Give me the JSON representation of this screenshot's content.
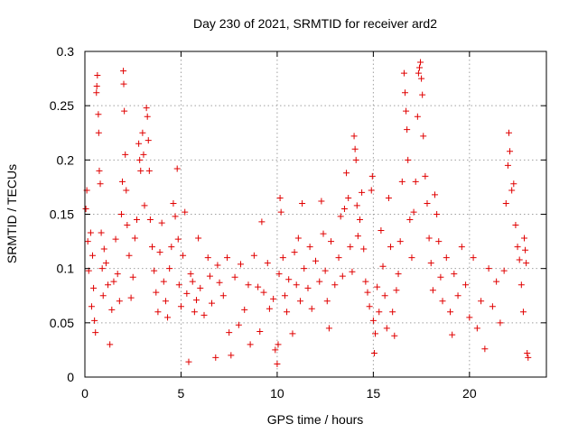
{
  "chart_data": {
    "type": "scatter",
    "title": "Day 230 of 2021, SRMTID for receiver ard2",
    "xlabel": "GPS time / hours",
    "ylabel": "SRMTID / TECUs",
    "xlim": [
      0,
      24
    ],
    "ylim": [
      0,
      0.3
    ],
    "x_ticks": [
      0,
      5,
      10,
      15,
      20
    ],
    "x_tick_labels": [
      "0",
      "5",
      "10",
      "15",
      "20"
    ],
    "y_ticks": [
      0,
      0.05,
      0.1,
      0.15,
      0.2,
      0.25,
      0.3
    ],
    "y_tick_labels": [
      "0",
      "0.05",
      "0.1",
      "0.15",
      "0.2",
      "0.25",
      "0.3"
    ],
    "grid": true,
    "marker": "plus",
    "color": "#e00000",
    "series": [
      {
        "name": "SRMTID",
        "points": [
          [
            0.05,
            0.155
          ],
          [
            0.1,
            0.172
          ],
          [
            0.15,
            0.125
          ],
          [
            0.2,
            0.098
          ],
          [
            0.3,
            0.133
          ],
          [
            0.35,
            0.065
          ],
          [
            0.4,
            0.112
          ],
          [
            0.45,
            0.082
          ],
          [
            0.5,
            0.052
          ],
          [
            0.55,
            0.041
          ],
          [
            0.6,
            0.262
          ],
          [
            0.62,
            0.268
          ],
          [
            0.65,
            0.278
          ],
          [
            0.7,
            0.242
          ],
          [
            0.72,
            0.225
          ],
          [
            0.75,
            0.19
          ],
          [
            0.8,
            0.178
          ],
          [
            0.85,
            0.133
          ],
          [
            0.9,
            0.1
          ],
          [
            0.95,
            0.075
          ],
          [
            1.0,
            0.118
          ],
          [
            1.1,
            0.105
          ],
          [
            1.2,
            0.085
          ],
          [
            1.3,
            0.03
          ],
          [
            1.4,
            0.062
          ],
          [
            1.5,
            0.088
          ],
          [
            1.6,
            0.127
          ],
          [
            1.7,
            0.095
          ],
          [
            1.8,
            0.07
          ],
          [
            1.9,
            0.15
          ],
          [
            1.95,
            0.18
          ],
          [
            2.0,
            0.282
          ],
          [
            2.02,
            0.27
          ],
          [
            2.05,
            0.245
          ],
          [
            2.1,
            0.205
          ],
          [
            2.15,
            0.172
          ],
          [
            2.2,
            0.14
          ],
          [
            2.3,
            0.112
          ],
          [
            2.4,
            0.073
          ],
          [
            2.5,
            0.092
          ],
          [
            2.6,
            0.128
          ],
          [
            2.7,
            0.145
          ],
          [
            2.8,
            0.215
          ],
          [
            2.85,
            0.2
          ],
          [
            2.9,
            0.19
          ],
          [
            3.0,
            0.225
          ],
          [
            3.05,
            0.205
          ],
          [
            3.1,
            0.158
          ],
          [
            3.2,
            0.248
          ],
          [
            3.25,
            0.24
          ],
          [
            3.3,
            0.218
          ],
          [
            3.35,
            0.19
          ],
          [
            3.4,
            0.145
          ],
          [
            3.5,
            0.12
          ],
          [
            3.6,
            0.098
          ],
          [
            3.7,
            0.078
          ],
          [
            3.8,
            0.06
          ],
          [
            3.9,
            0.115
          ],
          [
            4.0,
            0.142
          ],
          [
            4.1,
            0.088
          ],
          [
            4.2,
            0.07
          ],
          [
            4.3,
            0.055
          ],
          [
            4.4,
            0.1
          ],
          [
            4.5,
            0.12
          ],
          [
            4.6,
            0.16
          ],
          [
            4.7,
            0.148
          ],
          [
            4.8,
            0.192
          ],
          [
            4.85,
            0.127
          ],
          [
            4.9,
            0.085
          ],
          [
            5.0,
            0.065
          ],
          [
            5.1,
            0.112
          ],
          [
            5.2,
            0.152
          ],
          [
            5.3,
            0.077
          ],
          [
            5.4,
            0.014
          ],
          [
            5.5,
            0.095
          ],
          [
            5.6,
            0.088
          ],
          [
            5.7,
            0.06
          ],
          [
            5.8,
            0.071
          ],
          [
            5.9,
            0.128
          ],
          [
            6.0,
            0.082
          ],
          [
            6.2,
            0.057
          ],
          [
            6.4,
            0.11
          ],
          [
            6.5,
            0.093
          ],
          [
            6.6,
            0.068
          ],
          [
            6.8,
            0.018
          ],
          [
            6.9,
            0.103
          ],
          [
            7.0,
            0.087
          ],
          [
            7.2,
            0.075
          ],
          [
            7.4,
            0.11
          ],
          [
            7.5,
            0.041
          ],
          [
            7.6,
            0.02
          ],
          [
            7.8,
            0.092
          ],
          [
            8.0,
            0.048
          ],
          [
            8.1,
            0.104
          ],
          [
            8.3,
            0.062
          ],
          [
            8.5,
            0.085
          ],
          [
            8.6,
            0.03
          ],
          [
            8.8,
            0.112
          ],
          [
            9.0,
            0.083
          ],
          [
            9.1,
            0.042
          ],
          [
            9.2,
            0.143
          ],
          [
            9.3,
            0.078
          ],
          [
            9.5,
            0.105
          ],
          [
            9.6,
            0.063
          ],
          [
            9.8,
            0.072
          ],
          [
            9.9,
            0.025
          ],
          [
            10.0,
            0.012
          ],
          [
            10.05,
            0.03
          ],
          [
            10.1,
            0.095
          ],
          [
            10.15,
            0.165
          ],
          [
            10.2,
            0.152
          ],
          [
            10.3,
            0.11
          ],
          [
            10.4,
            0.075
          ],
          [
            10.5,
            0.06
          ],
          [
            10.6,
            0.09
          ],
          [
            10.8,
            0.04
          ],
          [
            10.9,
            0.115
          ],
          [
            11.0,
            0.085
          ],
          [
            11.1,
            0.128
          ],
          [
            11.2,
            0.07
          ],
          [
            11.3,
            0.16
          ],
          [
            11.4,
            0.1
          ],
          [
            11.6,
            0.082
          ],
          [
            11.7,
            0.12
          ],
          [
            11.8,
            0.063
          ],
          [
            12.0,
            0.107
          ],
          [
            12.2,
            0.088
          ],
          [
            12.3,
            0.162
          ],
          [
            12.4,
            0.132
          ],
          [
            12.5,
            0.098
          ],
          [
            12.6,
            0.07
          ],
          [
            12.7,
            0.045
          ],
          [
            12.8,
            0.125
          ],
          [
            13.0,
            0.085
          ],
          [
            13.2,
            0.11
          ],
          [
            13.3,
            0.148
          ],
          [
            13.4,
            0.093
          ],
          [
            13.5,
            0.155
          ],
          [
            13.6,
            0.188
          ],
          [
            13.7,
            0.165
          ],
          [
            13.8,
            0.12
          ],
          [
            13.9,
            0.097
          ],
          [
            14.0,
            0.222
          ],
          [
            14.05,
            0.21
          ],
          [
            14.1,
            0.2
          ],
          [
            14.15,
            0.158
          ],
          [
            14.2,
            0.13
          ],
          [
            14.3,
            0.145
          ],
          [
            14.4,
            0.17
          ],
          [
            14.5,
            0.118
          ],
          [
            14.6,
            0.088
          ],
          [
            14.7,
            0.078
          ],
          [
            14.8,
            0.065
          ],
          [
            14.9,
            0.172
          ],
          [
            14.95,
            0.185
          ],
          [
            15.0,
            0.052
          ],
          [
            15.05,
            0.022
          ],
          [
            15.1,
            0.04
          ],
          [
            15.2,
            0.083
          ],
          [
            15.3,
            0.06
          ],
          [
            15.4,
            0.135
          ],
          [
            15.5,
            0.102
          ],
          [
            15.6,
            0.075
          ],
          [
            15.7,
            0.045
          ],
          [
            15.8,
            0.165
          ],
          [
            15.9,
            0.12
          ],
          [
            16.0,
            0.06
          ],
          [
            16.1,
            0.038
          ],
          [
            16.2,
            0.08
          ],
          [
            16.3,
            0.095
          ],
          [
            16.4,
            0.125
          ],
          [
            16.5,
            0.18
          ],
          [
            16.6,
            0.28
          ],
          [
            16.65,
            0.262
          ],
          [
            16.7,
            0.245
          ],
          [
            16.75,
            0.228
          ],
          [
            16.8,
            0.2
          ],
          [
            16.9,
            0.145
          ],
          [
            17.0,
            0.11
          ],
          [
            17.1,
            0.152
          ],
          [
            17.2,
            0.18
          ],
          [
            17.3,
            0.24
          ],
          [
            17.35,
            0.28
          ],
          [
            17.4,
            0.285
          ],
          [
            17.45,
            0.29
          ],
          [
            17.5,
            0.275
          ],
          [
            17.55,
            0.26
          ],
          [
            17.6,
            0.222
          ],
          [
            17.7,
            0.185
          ],
          [
            17.8,
            0.16
          ],
          [
            17.9,
            0.128
          ],
          [
            18.0,
            0.105
          ],
          [
            18.1,
            0.08
          ],
          [
            18.2,
            0.168
          ],
          [
            18.3,
            0.15
          ],
          [
            18.4,
            0.125
          ],
          [
            18.5,
            0.092
          ],
          [
            18.6,
            0.07
          ],
          [
            18.8,
            0.11
          ],
          [
            19.0,
            0.06
          ],
          [
            19.1,
            0.039
          ],
          [
            19.2,
            0.095
          ],
          [
            19.4,
            0.075
          ],
          [
            19.6,
            0.12
          ],
          [
            19.8,
            0.085
          ],
          [
            20.0,
            0.055
          ],
          [
            20.2,
            0.11
          ],
          [
            20.4,
            0.045
          ],
          [
            20.6,
            0.07
          ],
          [
            20.8,
            0.026
          ],
          [
            21.0,
            0.1
          ],
          [
            21.2,
            0.065
          ],
          [
            21.4,
            0.088
          ],
          [
            21.6,
            0.05
          ],
          [
            21.8,
            0.098
          ],
          [
            21.9,
            0.16
          ],
          [
            22.0,
            0.195
          ],
          [
            22.05,
            0.225
          ],
          [
            22.1,
            0.208
          ],
          [
            22.2,
            0.172
          ],
          [
            22.3,
            0.178
          ],
          [
            22.4,
            0.14
          ],
          [
            22.5,
            0.12
          ],
          [
            22.6,
            0.108
          ],
          [
            22.7,
            0.085
          ],
          [
            22.8,
            0.06
          ],
          [
            22.85,
            0.128
          ],
          [
            22.9,
            0.117
          ],
          [
            22.95,
            0.105
          ],
          [
            23.0,
            0.022
          ],
          [
            23.05,
            0.018
          ]
        ]
      }
    ]
  }
}
